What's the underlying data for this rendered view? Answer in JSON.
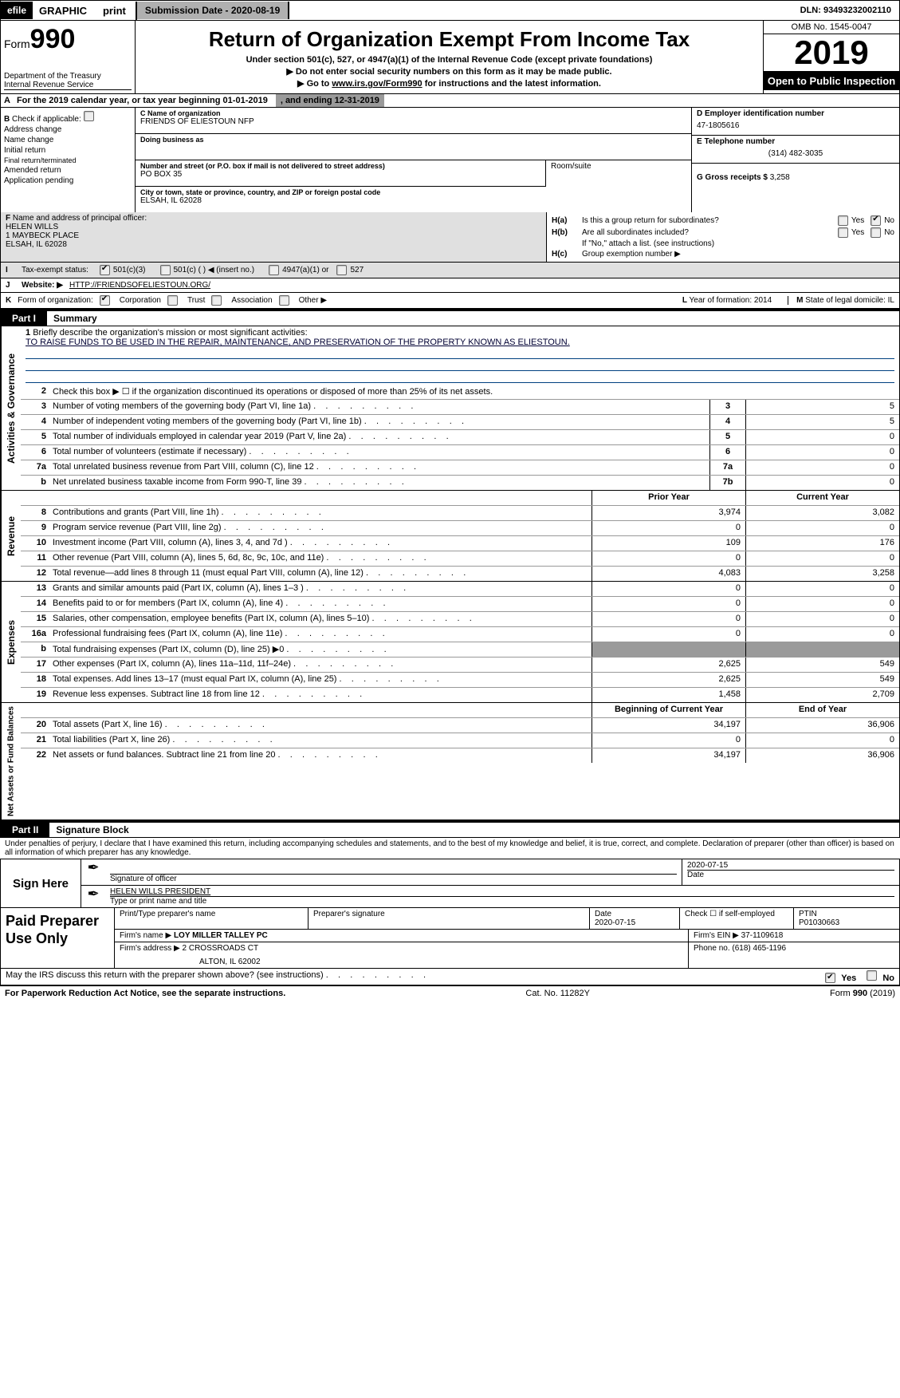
{
  "topbar": {
    "efile": "efile",
    "graphic": "GRAPHIC",
    "print": "print",
    "submission": "Submission Date - 2020-08-19",
    "dln": "DLN: 93493232002110"
  },
  "header": {
    "form_prefix": "Form",
    "form_num": "990",
    "title": "Return of Organization Exempt From Income Tax",
    "sub1": "Under section 501(c), 527, or 4947(a)(1) of the Internal Revenue Code (except private foundations)",
    "sub2": "▶ Do not enter social security numbers on this form as it may be made public.",
    "sub3_pre": "▶ Go to ",
    "sub3_link": "www.irs.gov/Form990",
    "sub3_post": " for instructions and the latest information.",
    "dept1": "Department of the Treasury",
    "dept2": "Internal Revenue Service",
    "omb": "OMB No. 1545-0047",
    "year": "2019",
    "open": "Open to Public Inspection"
  },
  "row_a": {
    "label": "A",
    "text": "For the 2019 calendar year, or tax year beginning 01-01-2019",
    "ending": ", and ending 12-31-2019"
  },
  "col_b": {
    "label": "B",
    "check": "Check if applicable:",
    "items": [
      "Address change",
      "Name change",
      "Initial return",
      "Final return/terminated",
      "Amended return",
      "Application pending"
    ]
  },
  "col_c": {
    "c_label": "C Name of organization",
    "org_name": "FRIENDS OF ELIESTOUN NFP",
    "dba_label": "Doing business as",
    "street_label": "Number and street (or P.O. box if mail is not delivered to street address)",
    "street": "PO BOX 35",
    "room_label": "Room/suite",
    "city_label": "City or town, state or province, country, and ZIP or foreign postal code",
    "city": "ELSAH, IL  62028"
  },
  "col_de": {
    "d_label": "D Employer identification number",
    "ein": "47-1805616",
    "e_label": "E Telephone number",
    "phone": "(314) 482-3035",
    "g_label": "G Gross receipts $ ",
    "g_val": "3,258"
  },
  "row_f": {
    "f_label": "F",
    "f_text": "Name and address of principal officer:",
    "name": "HELEN WILLS",
    "addr1": "1 MAYBECK PLACE",
    "addr2": "ELSAH, IL  62028"
  },
  "row_h": {
    "ha_label": "H(a)",
    "ha_text": "Is this a group return for subordinates?",
    "hb_label": "H(b)",
    "hb_text": "Are all subordinates included?",
    "hb_note": "If \"No,\" attach a list. (see instructions)",
    "hc_label": "H(c)",
    "hc_text": "Group exemption number ▶",
    "yes": "Yes",
    "no": "No"
  },
  "row_i": {
    "label": "I",
    "text": "Tax-exempt status:",
    "opt1": "501(c)(3)",
    "opt2": "501(c) (   ) ◀ (insert no.)",
    "opt3": "4947(a)(1) or",
    "opt4": "527"
  },
  "row_j": {
    "label": "J",
    "wlabel": "Website: ▶",
    "url": "HTTP://FRIENDSOFELIESTOUN.ORG/"
  },
  "row_k": {
    "label": "K",
    "text": "Form of organization:",
    "opts": [
      "Corporation",
      "Trust",
      "Association",
      "Other ▶"
    ]
  },
  "row_lm": {
    "l_label": "L",
    "l_text": "Year of formation: 2014",
    "m_label": "M",
    "m_text": "State of legal domicile: IL"
  },
  "part1": {
    "tab": "Part I",
    "title": "Summary"
  },
  "mission": {
    "num": "1",
    "text": "Briefly describe the organization's mission or most significant activities:",
    "content": "TO RAISE FUNDS TO BE USED IN THE REPAIR, MAINTENANCE, AND PRESERVATION OF THE PROPERTY KNOWN AS ELIESTOUN."
  },
  "governance_rows": [
    {
      "n": "2",
      "d": "Check this box ▶ ☐ if the organization discontinued its operations or disposed of more than 25% of its net assets."
    },
    {
      "n": "3",
      "d": "Number of voting members of the governing body (Part VI, line 1a)",
      "rn": "3",
      "v": "5"
    },
    {
      "n": "4",
      "d": "Number of independent voting members of the governing body (Part VI, line 1b)",
      "rn": "4",
      "v": "5"
    },
    {
      "n": "5",
      "d": "Total number of individuals employed in calendar year 2019 (Part V, line 2a)",
      "rn": "5",
      "v": "0"
    },
    {
      "n": "6",
      "d": "Total number of volunteers (estimate if necessary)",
      "rn": "6",
      "v": "0"
    },
    {
      "n": "7a",
      "d": "Total unrelated business revenue from Part VIII, column (C), line 12",
      "rn": "7a",
      "v": "0"
    },
    {
      "n": "b",
      "d": "Net unrelated business taxable income from Form 990-T, line 39",
      "rn": "7b",
      "v": "0"
    }
  ],
  "col_headers": {
    "prior": "Prior Year",
    "current": "Current Year"
  },
  "revenue_rows": [
    {
      "n": "8",
      "d": "Contributions and grants (Part VIII, line 1h)",
      "p": "3,974",
      "c": "3,082"
    },
    {
      "n": "9",
      "d": "Program service revenue (Part VIII, line 2g)",
      "p": "0",
      "c": "0"
    },
    {
      "n": "10",
      "d": "Investment income (Part VIII, column (A), lines 3, 4, and 7d )",
      "p": "109",
      "c": "176"
    },
    {
      "n": "11",
      "d": "Other revenue (Part VIII, column (A), lines 5, 6d, 8c, 9c, 10c, and 11e)",
      "p": "0",
      "c": "0"
    },
    {
      "n": "12",
      "d": "Total revenue—add lines 8 through 11 (must equal Part VIII, column (A), line 12)",
      "p": "4,083",
      "c": "3,258"
    }
  ],
  "expense_rows": [
    {
      "n": "13",
      "d": "Grants and similar amounts paid (Part IX, column (A), lines 1–3 )",
      "p": "0",
      "c": "0"
    },
    {
      "n": "14",
      "d": "Benefits paid to or for members (Part IX, column (A), line 4)",
      "p": "0",
      "c": "0"
    },
    {
      "n": "15",
      "d": "Salaries, other compensation, employee benefits (Part IX, column (A), lines 5–10)",
      "p": "0",
      "c": "0"
    },
    {
      "n": "16a",
      "d": "Professional fundraising fees (Part IX, column (A), line 11e)",
      "p": "0",
      "c": "0"
    },
    {
      "n": "b",
      "d": "Total fundraising expenses (Part IX, column (D), line 25) ▶0",
      "p": "",
      "c": "",
      "shade": true
    },
    {
      "n": "17",
      "d": "Other expenses (Part IX, column (A), lines 11a–11d, 11f–24e)",
      "p": "2,625",
      "c": "549"
    },
    {
      "n": "18",
      "d": "Total expenses. Add lines 13–17 (must equal Part IX, column (A), line 25)",
      "p": "2,625",
      "c": "549"
    },
    {
      "n": "19",
      "d": "Revenue less expenses. Subtract line 18 from line 12",
      "p": "1,458",
      "c": "2,709"
    }
  ],
  "net_headers": {
    "begin": "Beginning of Current Year",
    "end": "End of Year"
  },
  "net_rows": [
    {
      "n": "20",
      "d": "Total assets (Part X, line 16)",
      "p": "34,197",
      "c": "36,906"
    },
    {
      "n": "21",
      "d": "Total liabilities (Part X, line 26)",
      "p": "0",
      "c": "0"
    },
    {
      "n": "22",
      "d": "Net assets or fund balances. Subtract line 21 from line 20",
      "p": "34,197",
      "c": "36,906"
    }
  ],
  "vtabs": {
    "gov": "Activities & Governance",
    "rev": "Revenue",
    "exp": "Expenses",
    "net": "Net Assets or Fund Balances"
  },
  "part2": {
    "tab": "Part II",
    "title": "Signature Block"
  },
  "perjury": "Under penalties of perjury, I declare that I have examined this return, including accompanying schedules and statements, and to the best of my knowledge and belief, it is true, correct, and complete. Declaration of preparer (other than officer) is based on all information of which preparer has any knowledge.",
  "sign": {
    "label": "Sign Here",
    "sig_label": "Signature of officer",
    "date": "2020-07-15",
    "date_label": "Date",
    "name": "HELEN WILLS  PRESIDENT",
    "name_label": "Type or print name and title"
  },
  "paid": {
    "label": "Paid Preparer Use Only",
    "h1": "Print/Type preparer's name",
    "h2": "Preparer's signature",
    "h3": "Date",
    "h3v": "2020-07-15",
    "h4": "Check ☐ if self-employed",
    "h5": "PTIN",
    "h5v": "P01030663",
    "firm_label": "Firm's name    ▶",
    "firm": "LOY MILLER TALLEY PC",
    "ein_label": "Firm's EIN ▶",
    "ein": "37-1109618",
    "addr_label": "Firm's address ▶",
    "addr1": "2 CROSSROADS CT",
    "addr2": "ALTON, IL  62002",
    "phone_label": "Phone no.",
    "phone": "(618) 465-1196"
  },
  "may": {
    "text": "May the IRS discuss this return with the preparer shown above? (see instructions)",
    "yes": "Yes",
    "no": "No"
  },
  "footer": {
    "left": "For Paperwork Reduction Act Notice, see the separate instructions.",
    "center": "Cat. No. 11282Y",
    "right": "Form 990 (2019)"
  }
}
